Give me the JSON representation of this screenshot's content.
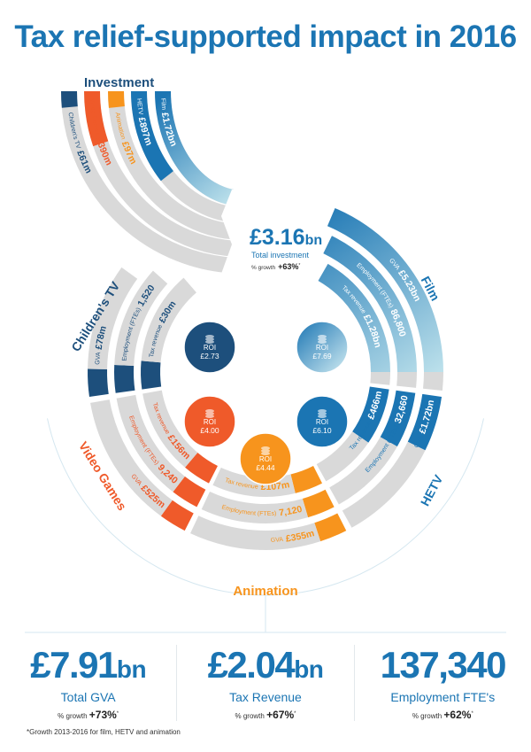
{
  "title": "Tax relief-supported impact in 2016",
  "investment": {
    "heading": "Investment",
    "total": "£3.16",
    "total_unit": "bn",
    "total_label": "Total investment",
    "growth_label": "% growth",
    "growth": "+63%",
    "growth_mark": "*",
    "items": [
      {
        "name": "Children's TV",
        "value": "£61m",
        "value_m": 61
      },
      {
        "name": "Video Games",
        "value": "£390m",
        "value_m": 390
      },
      {
        "name": "Animation",
        "value": "£97m",
        "value_m": 97
      },
      {
        "name": "HETV",
        "value": "£897m",
        "value_m": 897
      },
      {
        "name": "Film",
        "value": "£1.72bn",
        "value_m": 1720
      }
    ]
  },
  "roi_label": "ROI",
  "sectors": {
    "film": {
      "title": "Film",
      "roi": "£7.69",
      "metrics": [
        {
          "label": "GVA",
          "value": "£5.23bn"
        },
        {
          "label": "Employment (FTEs)",
          "value": "86,800"
        },
        {
          "label": "Tax revenue",
          "value": "£1.28bn"
        }
      ]
    },
    "hetv": {
      "title": "HETV",
      "roi": "£6.10",
      "metrics": [
        {
          "label": "GVA",
          "value": "£1.72bn"
        },
        {
          "label": "Employment (FTEs)",
          "value": "32,660"
        },
        {
          "label": "Tax revenue",
          "value": "£466m"
        }
      ]
    },
    "animation": {
      "title": "Animation",
      "roi": "£4.44",
      "metrics": [
        {
          "label": "GVA",
          "value": "£355m"
        },
        {
          "label": "Employment (FTEs)",
          "value": "7,120"
        },
        {
          "label": "Tax revenue",
          "value": "£107m"
        }
      ]
    },
    "video_games": {
      "title": "Video Games",
      "roi": "£4.00",
      "metrics": [
        {
          "label": "GVA",
          "value": "£525m"
        },
        {
          "label": "Employment (FTEs)",
          "value": "9,240"
        },
        {
          "label": "Tax revenue",
          "value": "£156m"
        }
      ]
    },
    "childrens_tv": {
      "title": "Children's TV",
      "roi": "£2.73",
      "metrics": [
        {
          "label": "GVA",
          "value": "£78m"
        },
        {
          "label": "Employment (FTEs)",
          "value": "1,520"
        },
        {
          "label": "Tax revenue",
          "value": "£30m"
        }
      ]
    }
  },
  "totals": [
    {
      "value": "£7.91",
      "unit": "bn",
      "label": "Total GVA",
      "growth_label": "% growth",
      "growth": "+73%",
      "mark": "*"
    },
    {
      "value": "£2.04",
      "unit": "bn",
      "label": "Tax Revenue",
      "growth_label": "% growth",
      "growth": "+67%",
      "mark": "*"
    },
    {
      "value": "137,340",
      "unit": "",
      "label": "Employment FTE's",
      "growth_label": "% growth",
      "growth": "+62%",
      "mark": "*"
    }
  ],
  "footnote": "*Growth 2013-2016 for film, HETV and animation",
  "colors": {
    "blue": "#1b75b3",
    "navy": "#1d4f7c",
    "red": "#ef5a2a",
    "orange": "#f7941d",
    "gray": "#d9d9d9",
    "light": "#bfe3ec"
  },
  "chart_data": {
    "type": "radial-bar",
    "title": "Tax relief-supported impact in 2016",
    "investment_m": {
      "Children's TV": 61,
      "Video Games": 390,
      "Animation": 97,
      "HETV": 897,
      "Film": 1720
    },
    "roi": {
      "Film": 7.69,
      "HETV": 6.1,
      "Animation": 4.44,
      "Video Games": 4.0,
      "Children's TV": 2.73
    }
  }
}
